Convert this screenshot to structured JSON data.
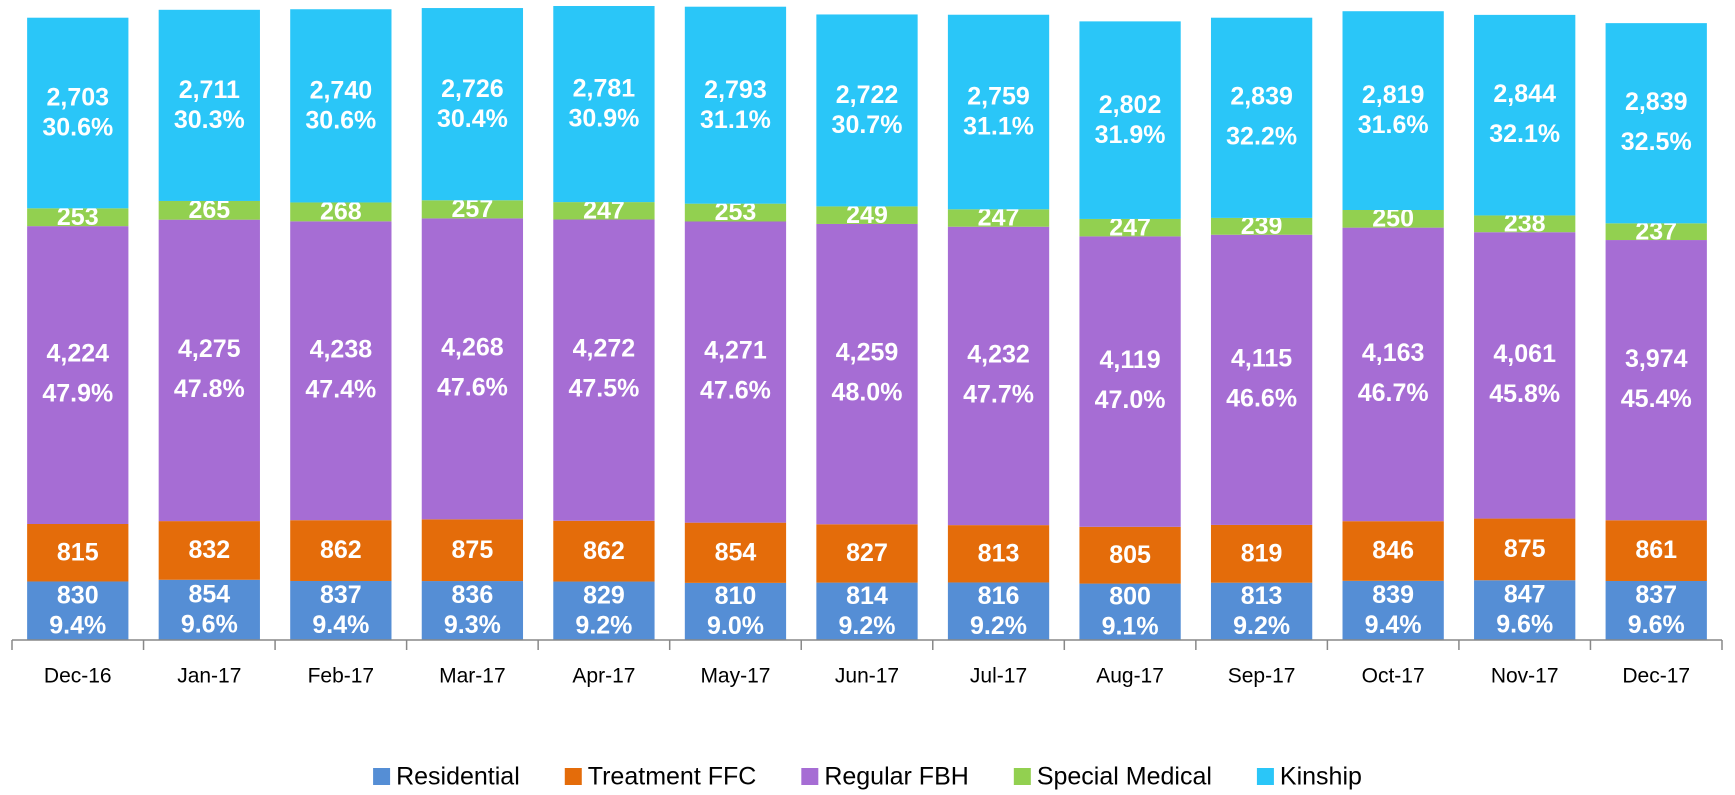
{
  "chart_data": {
    "type": "stacked_bar",
    "categories": [
      "Dec-16",
      "Jan-17",
      "Feb-17",
      "Mar-17",
      "Apr-17",
      "May-17",
      "Jun-17",
      "Jul-17",
      "Aug-17",
      "Sep-17",
      "Oct-17",
      "Nov-17",
      "Dec-17"
    ],
    "series": [
      {
        "name": "Residential",
        "color": "#558ed5",
        "values": [
          830,
          854,
          837,
          836,
          829,
          810,
          814,
          816,
          800,
          813,
          839,
          847,
          837
        ],
        "value_labels": [
          "830",
          "854",
          "837",
          "836",
          "829",
          "810",
          "814",
          "816",
          "800",
          "813",
          "839",
          "847",
          "837"
        ],
        "percent_labels": [
          "9.4%",
          "9.6%",
          "9.4%",
          "9.3%",
          "9.2%",
          "9.0%",
          "9.2%",
          "9.2%",
          "9.1%",
          "9.2%",
          "9.4%",
          "9.6%",
          "9.6%"
        ]
      },
      {
        "name": "Treatment FFC",
        "color": "#e46c0a",
        "values": [
          815,
          832,
          862,
          875,
          862,
          854,
          827,
          813,
          805,
          819,
          846,
          875,
          861
        ],
        "value_labels": [
          "815",
          "832",
          "862",
          "875",
          "862",
          "854",
          "827",
          "813",
          "805",
          "819",
          "846",
          "875",
          "861"
        ]
      },
      {
        "name": "Regular FBH",
        "color": "#a66dd4",
        "values": [
          4224,
          4275,
          4238,
          4268,
          4272,
          4271,
          4259,
          4232,
          4119,
          4115,
          4163,
          4061,
          3974
        ],
        "value_labels": [
          "4,224",
          "4,275",
          "4,238",
          "4,268",
          "4,272",
          "4,271",
          "4,259",
          "4,232",
          "4,119",
          "4,115",
          "4,163",
          "4,061",
          "3,974"
        ],
        "percent_labels": [
          "47.9%",
          "47.8%",
          "47.4%",
          "47.6%",
          "47.5%",
          "47.6%",
          "48.0%",
          "47.7%",
          "47.0%",
          "46.6%",
          "46.7%",
          "45.8%",
          "45.4%"
        ]
      },
      {
        "name": "Special Medical",
        "color": "#92d050",
        "values": [
          253,
          265,
          268,
          257,
          247,
          253,
          249,
          247,
          247,
          239,
          250,
          238,
          237
        ],
        "value_labels": [
          "253",
          "265",
          "268",
          "257",
          "247",
          "253",
          "249",
          "247",
          "247",
          "239",
          "250",
          "238",
          "237"
        ]
      },
      {
        "name": "Kinship",
        "color": "#2ac6f8",
        "values": [
          2703,
          2711,
          2740,
          2726,
          2781,
          2793,
          2722,
          2759,
          2802,
          2839,
          2819,
          2844,
          2839
        ],
        "value_labels": [
          "2,703",
          "2,711",
          "2,740",
          "2,726",
          "2,781",
          "2,793",
          "2,722",
          "2,759",
          "2,802",
          "2,839",
          "2,819",
          "2,844",
          "2,839"
        ],
        "percent_labels": [
          "30.6%",
          "30.3%",
          "30.6%",
          "30.4%",
          "30.9%",
          "31.1%",
          "30.7%",
          "31.1%",
          "31.9%",
          "32.2%",
          "31.6%",
          "32.1%",
          "32.5%"
        ]
      }
    ],
    "legend": "bottom"
  }
}
